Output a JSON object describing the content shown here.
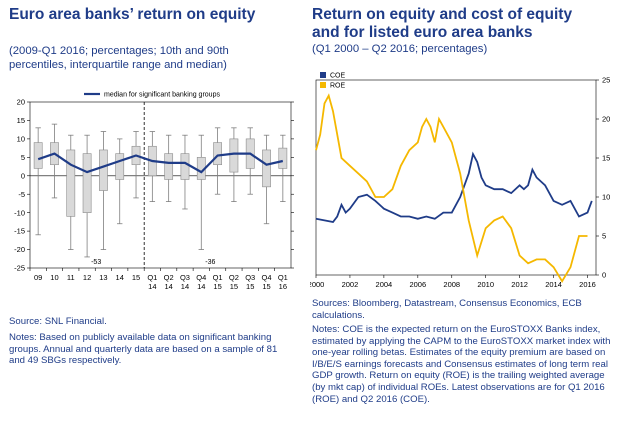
{
  "left": {
    "title": "Euro area banks’ return on equity",
    "subtitle_lines": [
      "(2009-Q1 2016; percentages; 10th and 90th",
      "percentiles, interquartile range and median)"
    ],
    "source": "Source: SNL Financial.",
    "notes_lines": [
      "Notes: Based on publicly  available data on significant banking",
      "groups. Annual and quarterly data are based on a sample of 81",
      "and 49 SBGs respectively."
    ]
  },
  "right": {
    "title_lines": [
      "Return on equity and cost of equity",
      "and for listed euro area banks"
    ],
    "subtitle": "(Q1 2000 – Q2 2016; percentages)",
    "source_lines": [
      "Sources: Bloomberg, Datastream, Consensus Economics, ECB",
      "calculations."
    ],
    "notes_lines": [
      "Notes: COE is the expected return on the EuroSTOXX Banks index,",
      "estimated by applying  the CAPM to the EuroSTOXX market index with",
      "one-year rolling betas. Estimates of the equity premium are based on",
      "I/B/E/S earnings forecasts and Consensus estimates of long term real",
      "GDP growth. Return on equity (ROE) is the trailing weighted  average",
      "(by mkt cap) of individual  ROEs. Latest observations are for Q1 2016",
      "(ROE) and Q2 2016 (COE)."
    ]
  },
  "chart_data": [
    {
      "type": "box",
      "legend": "median for significant banking groups",
      "categories": [
        "09",
        "10",
        "11",
        "12",
        "13",
        "14",
        "15",
        "Q1 14",
        "Q2 14",
        "Q3 14",
        "Q4 14",
        "Q1 15",
        "Q2 15",
        "Q3 15",
        "Q4 15",
        "Q1 16"
      ],
      "category_lines": [
        [
          "09"
        ],
        [
          "10"
        ],
        [
          "11"
        ],
        [
          "12"
        ],
        [
          "13"
        ],
        [
          "14"
        ],
        [
          "15"
        ],
        [
          "Q1",
          "14"
        ],
        [
          "Q2",
          "14"
        ],
        [
          "Q3",
          "14"
        ],
        [
          "Q4",
          "14"
        ],
        [
          "Q1",
          "15"
        ],
        [
          "Q2",
          "15"
        ],
        [
          "Q3",
          "15"
        ],
        [
          "Q4",
          "15"
        ],
        [
          "Q1",
          "16"
        ]
      ],
      "p10": [
        -16,
        -6,
        -20,
        -22,
        -20,
        -13,
        -6,
        -7,
        -7,
        -9,
        -20,
        -5,
        -7,
        -5,
        -13,
        -7
      ],
      "q1": [
        2,
        3,
        -11,
        -10,
        -4,
        -1,
        3,
        0,
        -1,
        -1,
        -1,
        3,
        1,
        2,
        -3,
        2
      ],
      "median": [
        4.5,
        6,
        3,
        1,
        2.5,
        4,
        5.5,
        4,
        3.5,
        3.5,
        1,
        5.5,
        6,
        6,
        3,
        4
      ],
      "q3": [
        9,
        9,
        7,
        6,
        7,
        6,
        8,
        8,
        6,
        6,
        5,
        9,
        10,
        10,
        7,
        7.5
      ],
      "p90": [
        13,
        14,
        11,
        11,
        12,
        10,
        12,
        12,
        11,
        11,
        11,
        13,
        13,
        13,
        11,
        11
      ],
      "min_labels": [
        {
          "category": "12",
          "text": "-53"
        },
        {
          "category": "Q4 14",
          "text": "-36"
        }
      ],
      "ylim": [
        -25,
        20
      ],
      "yticks": [
        -25,
        -20,
        -15,
        -10,
        -5,
        0,
        5,
        10,
        15,
        20
      ],
      "separator_after": "15",
      "colors": {
        "box": "#d9d9d9",
        "median": "#1f3c88"
      }
    },
    {
      "type": "line",
      "legend_position": "top-left",
      "series": [
        {
          "name": "COE",
          "color": "#1f3c88",
          "x": [
            2000,
            2000.5,
            2001,
            2001.25,
            2001.5,
            2001.75,
            2002,
            2002.5,
            2003,
            2003.5,
            2004,
            2004.5,
            2005,
            2005.5,
            2006,
            2006.5,
            2007,
            2007.5,
            2008,
            2008.5,
            2009,
            2009.25,
            2009.5,
            2009.75,
            2010,
            2010.5,
            2011,
            2011.5,
            2012,
            2012.25,
            2012.5,
            2012.75,
            2013,
            2013.25,
            2013.5,
            2014,
            2014.5,
            2015,
            2015.5,
            2016,
            2016.25
          ],
          "y": [
            7.2,
            7,
            6.8,
            7.5,
            9,
            8,
            8.5,
            10,
            10.3,
            9.5,
            8.5,
            8,
            7.5,
            7.5,
            7.2,
            7.5,
            7.2,
            8,
            8,
            10,
            13,
            15.5,
            14.5,
            12.5,
            11.5,
            11,
            11,
            10.5,
            11.5,
            11,
            11.5,
            13.5,
            12.5,
            12,
            11.5,
            9.5,
            9,
            9.5,
            7.5,
            8,
            9.5
          ]
        },
        {
          "name": "ROE",
          "color": "#f5b800",
          "x": [
            2000,
            2000.25,
            2000.5,
            2000.75,
            2001,
            2001.5,
            2002,
            2002.5,
            2003,
            2003.5,
            2004,
            2004.5,
            2005,
            2005.5,
            2006,
            2006.25,
            2006.5,
            2006.75,
            2007,
            2007.25,
            2007.5,
            2008,
            2008.5,
            2009,
            2009.5,
            2010,
            2010.5,
            2011,
            2011.5,
            2012,
            2012.5,
            2013,
            2013.5,
            2014,
            2014.5,
            2015,
            2015.5,
            2016
          ],
          "y": [
            16,
            18,
            22,
            23,
            21,
            15,
            14,
            13,
            12,
            10,
            10,
            11,
            14,
            16,
            17,
            19,
            20,
            19,
            17,
            20,
            19,
            17,
            13,
            7,
            2.5,
            6,
            7,
            7.5,
            6,
            2.5,
            1.5,
            2,
            2,
            1,
            -0.8,
            1,
            5,
            5
          ]
        }
      ],
      "xlim": [
        2000,
        2016.5
      ],
      "xticks": [
        2000,
        2002,
        2004,
        2006,
        2008,
        2010,
        2012,
        2014,
        2016
      ],
      "ylim": [
        0,
        25
      ],
      "yticks": [
        0,
        5,
        10,
        15,
        20,
        25
      ]
    }
  ]
}
